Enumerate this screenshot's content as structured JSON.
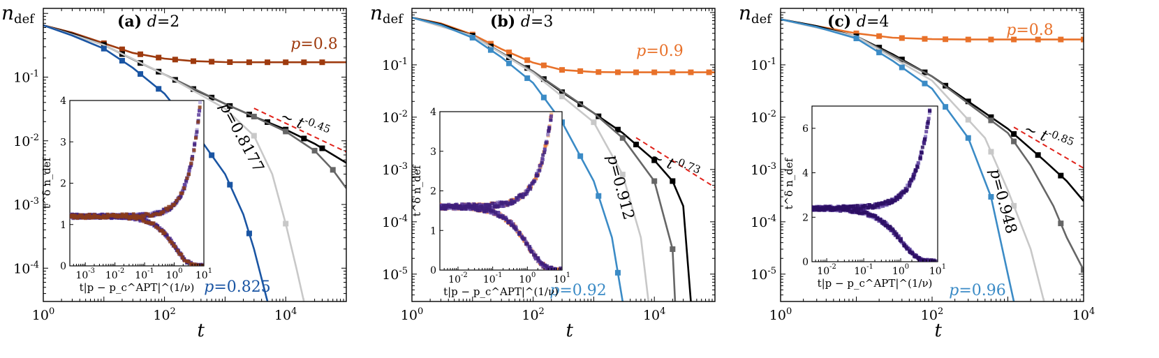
{
  "chart_data": [
    {
      "type": "line",
      "panel": "(a)",
      "title_label": "(a)",
      "dimension": "d=2",
      "xlabel": "t",
      "ylabel": "n_def",
      "x_scale": "log",
      "y_scale": "log",
      "xlim": [
        1,
        100000
      ],
      "ylim": [
        3e-05,
        1.2
      ],
      "xticks": [
        "10^0",
        "10^2",
        "10^4"
      ],
      "yticks": [
        "10^-1",
        "10^-2",
        "10^-3",
        "10^-4"
      ],
      "fit_label": "~ t^-0.45",
      "fit_exponent": -0.45,
      "fit_range": [
        3000,
        100000
      ],
      "series": [
        {
          "name": "p=0.8",
          "color": "#9e3a0e",
          "points": [
            [
              1,
              0.65
            ],
            [
              3,
              0.5
            ],
            [
              10,
              0.34
            ],
            [
              30,
              0.24
            ],
            [
              100,
              0.195
            ],
            [
              300,
              0.178
            ],
            [
              1000,
              0.172
            ],
            [
              3000,
              0.171
            ],
            [
              10000,
              0.171
            ],
            [
              100000,
              0.171
            ]
          ],
          "markers": [
            10,
            20,
            40,
            80,
            150,
            300,
            600,
            1200,
            2500,
            5000,
            10000,
            20000,
            40000
          ]
        },
        {
          "name": "p=0.8177",
          "color": "#000000",
          "points": [
            [
              1,
              0.65
            ],
            [
              3,
              0.48
            ],
            [
              10,
              0.32
            ],
            [
              30,
              0.19
            ],
            [
              100,
              0.11
            ],
            [
              300,
              0.065
            ],
            [
              1000,
              0.038
            ],
            [
              3000,
              0.024
            ],
            [
              10000,
              0.015
            ],
            [
              30000,
              0.009
            ],
            [
              100000,
              0.0045
            ]
          ],
          "markers": [
            10,
            20,
            40,
            80,
            150,
            300,
            600,
            1200,
            2500,
            5000,
            10000,
            20000,
            40000
          ]
        },
        {
          "name": "",
          "color": "#666666",
          "points": [
            [
              1,
              0.65
            ],
            [
              10,
              0.32
            ],
            [
              100,
              0.11
            ],
            [
              1000,
              0.038
            ],
            [
              3000,
              0.024
            ],
            [
              10000,
              0.014
            ],
            [
              30000,
              0.007
            ],
            [
              60000,
              0.0035
            ],
            [
              100000,
              0.0018
            ]
          ],
          "markers": [
            3000,
            10000,
            30000,
            60000
          ]
        },
        {
          "name": "",
          "color": "#c8c8c8",
          "points": [
            [
              1,
              0.65
            ],
            [
              10,
              0.32
            ],
            [
              100,
              0.11
            ],
            [
              1000,
              0.032
            ],
            [
              3000,
              0.012
            ],
            [
              6000,
              0.003
            ],
            [
              10000,
              0.0005
            ],
            [
              15000,
              0.0001
            ],
            [
              20000,
              3e-05
            ]
          ],
          "markers": [
            3000,
            10000
          ]
        },
        {
          "name": "p=0.825",
          "color": "#1a55a3",
          "points": [
            [
              1,
              0.65
            ],
            [
              3,
              0.45
            ],
            [
              10,
              0.28
            ],
            [
              30,
              0.14
            ],
            [
              100,
              0.055
            ],
            [
              300,
              0.015
            ],
            [
              1000,
              0.003
            ],
            [
              2000,
              0.0007
            ],
            [
              3000,
              0.0002
            ],
            [
              5000,
              3e-05
            ]
          ],
          "markers": [
            10,
            20,
            40,
            80,
            150,
            300,
            600,
            1200,
            2500
          ]
        }
      ],
      "series_labels": [
        "p=0.8",
        "p=0.8177",
        "p=0.825"
      ],
      "inset": {
        "xlabel": "t|p − p_c^APT|^(1/ν)",
        "ylabel": "t^δ n_def",
        "xlim": [
          0.0003,
          10
        ],
        "ylim": [
          0,
          4
        ],
        "xticks": [
          "10^-3",
          "10^-2",
          "10^-1",
          "10^0",
          "10^1"
        ],
        "yticks": [
          "0",
          "1",
          "2",
          "3",
          "4"
        ],
        "branches": [
          "upper",
          "lower"
        ],
        "plateau": 1.2,
        "colors": [
          "#b1a9d9",
          "#8e7cc3",
          "#5b3b9a",
          "#3e1f7a",
          "#8a3b1a"
        ]
      }
    },
    {
      "type": "line",
      "panel": "(b)",
      "title_label": "(b)",
      "dimension": "d=3",
      "xlabel": "t",
      "ylabel": "n_def",
      "x_scale": "log",
      "y_scale": "log",
      "xlim": [
        1,
        100000
      ],
      "ylim": [
        3e-06,
        1.2
      ],
      "xticks": [
        "10^0",
        "10^2",
        "10^4"
      ],
      "yticks": [
        "10^-1",
        "10^-2",
        "10^-3",
        "10^-4",
        "10^-5"
      ],
      "fit_label": "~ t^-0.73",
      "fit_exponent": -0.73,
      "fit_range": [
        5000,
        100000
      ],
      "series": [
        {
          "name": "p=0.9",
          "color": "#e8712a",
          "points": [
            [
              1,
              0.8
            ],
            [
              3,
              0.62
            ],
            [
              10,
              0.38
            ],
            [
              30,
              0.2
            ],
            [
              100,
              0.11
            ],
            [
              300,
              0.08
            ],
            [
              1000,
              0.073
            ],
            [
              3000,
              0.072
            ],
            [
              10000,
              0.072
            ],
            [
              100000,
              0.072
            ]
          ],
          "markers": [
            10,
            20,
            40,
            80,
            150,
            300,
            600,
            1200,
            2500,
            5000,
            10000,
            20000,
            40000,
            80000
          ]
        },
        {
          "name": "",
          "color": "#000000",
          "points": [
            [
              1,
              0.8
            ],
            [
              3,
              0.6
            ],
            [
              10,
              0.36
            ],
            [
              30,
              0.17
            ],
            [
              100,
              0.075
            ],
            [
              300,
              0.03
            ],
            [
              1000,
              0.012
            ],
            [
              3000,
              0.005
            ],
            [
              10000,
              0.0015
            ],
            [
              20000,
              0.0006
            ],
            [
              30000,
              0.0002
            ],
            [
              40000,
              3e-06
            ]
          ],
          "markers": [
            10,
            20,
            40,
            80,
            150,
            300,
            600,
            1200,
            2500,
            5000,
            10000,
            20000
          ]
        },
        {
          "name": "",
          "color": "#666666",
          "points": [
            [
              1,
              0.8
            ],
            [
              10,
              0.36
            ],
            [
              100,
              0.075
            ],
            [
              1000,
              0.012
            ],
            [
              3000,
              0.004
            ],
            [
              10000,
              0.0006
            ],
            [
              20000,
              3e-05
            ],
            [
              22000,
              3e-06
            ]
          ],
          "markers": [
            3000,
            10000,
            20000
          ]
        },
        {
          "name": "",
          "color": "#c8c8c8",
          "points": [
            [
              1,
              0.8
            ],
            [
              10,
              0.36
            ],
            [
              100,
              0.07
            ],
            [
              1000,
              0.008
            ],
            [
              3000,
              0.0008
            ],
            [
              6000,
              5e-05
            ],
            [
              8000,
              3e-06
            ]
          ],
          "markers": [
            300,
            1000,
            3000
          ]
        },
        {
          "name": "p=0.92",
          "color": "#3b8bc6",
          "points": [
            [
              1,
              0.8
            ],
            [
              3,
              0.58
            ],
            [
              10,
              0.33
            ],
            [
              30,
              0.14
            ],
            [
              100,
              0.045
            ],
            [
              300,
              0.008
            ],
            [
              1000,
              0.0006
            ],
            [
              2000,
              5e-05
            ],
            [
              3000,
              3e-06
            ]
          ],
          "markers": [
            10,
            20,
            40,
            80,
            150,
            300,
            600,
            1200,
            2500
          ]
        }
      ],
      "series_labels": [
        "p=0.9",
        "p=0.912",
        "p=0.92"
      ],
      "inset": {
        "xlabel": "t|p − p_c^APT|^(1/ν)",
        "ylabel": "t^δ n_def",
        "xlim": [
          0.003,
          10
        ],
        "ylim": [
          0,
          4
        ],
        "xticks": [
          "10^-2",
          "10^-1",
          "10^0",
          "10^1"
        ],
        "yticks": [
          "0",
          "1",
          "2",
          "3",
          "4"
        ],
        "branches": [
          "upper",
          "lower"
        ],
        "plateau": 1.6,
        "colors": [
          "#f3b27a",
          "#e8712a",
          "#8e7cc3",
          "#5b3b9a",
          "#3e1f7a"
        ]
      }
    },
    {
      "type": "line",
      "panel": "(c)",
      "title_label": "(c)",
      "dimension": "d=4",
      "xlabel": "t",
      "ylabel": "n_def",
      "x_scale": "log",
      "y_scale": "log",
      "xlim": [
        1,
        10000
      ],
      "ylim": [
        3e-06,
        1.2
      ],
      "xticks": [
        "10^0",
        "10^2",
        "10^4"
      ],
      "yticks": [
        "10^-1",
        "10^-2",
        "10^-3",
        "10^-4",
        "10^-5"
      ],
      "fit_label": "~ t^-0.85",
      "fit_exponent": -0.85,
      "fit_range": [
        1200,
        10000
      ],
      "series": [
        {
          "name": "p=0.8",
          "color": "#e8712a",
          "points": [
            [
              1,
              0.74
            ],
            [
              3,
              0.55
            ],
            [
              10,
              0.4
            ],
            [
              30,
              0.33
            ],
            [
              100,
              0.31
            ],
            [
              300,
              0.305
            ],
            [
              1000,
              0.305
            ],
            [
              10000,
              0.305
            ]
          ],
          "markers": [
            10,
            20,
            40,
            80,
            150,
            300,
            600,
            1200,
            2500,
            5000,
            10000
          ]
        },
        {
          "name": "",
          "color": "#000000",
          "points": [
            [
              1,
              0.74
            ],
            [
              3,
              0.55
            ],
            [
              10,
              0.35
            ],
            [
              30,
              0.16
            ],
            [
              100,
              0.06
            ],
            [
              300,
              0.02
            ],
            [
              1000,
              0.006
            ],
            [
              3000,
              0.0015
            ],
            [
              6000,
              0.0006
            ],
            [
              10000,
              0.00025
            ]
          ],
          "markers": [
            10,
            20,
            40,
            80,
            150,
            300,
            600,
            1200,
            2500,
            5000
          ]
        },
        {
          "name": "",
          "color": "#666666",
          "points": [
            [
              1,
              0.74
            ],
            [
              10,
              0.35
            ],
            [
              100,
              0.06
            ],
            [
              1000,
              0.005
            ],
            [
              2000,
              0.0012
            ],
            [
              4000,
              0.0002
            ],
            [
              6000,
              5e-05
            ],
            [
              10000,
              1.2e-05
            ]
          ],
          "markers": [
            600,
            1200,
            5000,
            10000
          ]
        },
        {
          "name": "",
          "color": "#c8c8c8",
          "points": [
            [
              1,
              0.74
            ],
            [
              10,
              0.35
            ],
            [
              100,
              0.05
            ],
            [
              500,
              0.004
            ],
            [
              1000,
              0.0004
            ],
            [
              2000,
              3e-05
            ],
            [
              3000,
              3e-06
            ]
          ],
          "markers": [
            300,
            600,
            1200
          ]
        },
        {
          "name": "p=0.96",
          "color": "#3b8bc6",
          "points": [
            [
              1,
              0.74
            ],
            [
              3,
              0.53
            ],
            [
              10,
              0.32
            ],
            [
              30,
              0.12
            ],
            [
              100,
              0.035
            ],
            [
              300,
              0.004
            ],
            [
              600,
              0.0003
            ],
            [
              1000,
              1e-05
            ],
            [
              1200,
              3e-06
            ]
          ],
          "markers": [
            10,
            20,
            40,
            80,
            150,
            300,
            600
          ]
        }
      ],
      "series_labels": [
        "p=0.8",
        "p=0.948",
        "p=0.96"
      ],
      "inset": {
        "xlabel": "t|p − p_c^APT|^(1/ν)",
        "ylabel": "t^δ n_def",
        "xlim": [
          0.004,
          10
        ],
        "ylim": [
          0,
          7
        ],
        "xticks": [
          "10^-2",
          "10^-1",
          "10^0",
          "10^1"
        ],
        "yticks": [
          "0",
          "2",
          "4",
          "6"
        ],
        "branches": [
          "upper",
          "lower"
        ],
        "plateau": 2.4,
        "colors": [
          "#b1a9d9",
          "#8e7cc3",
          "#5b3b9a",
          "#3e1f7a",
          "#2b0e63"
        ]
      }
    }
  ]
}
